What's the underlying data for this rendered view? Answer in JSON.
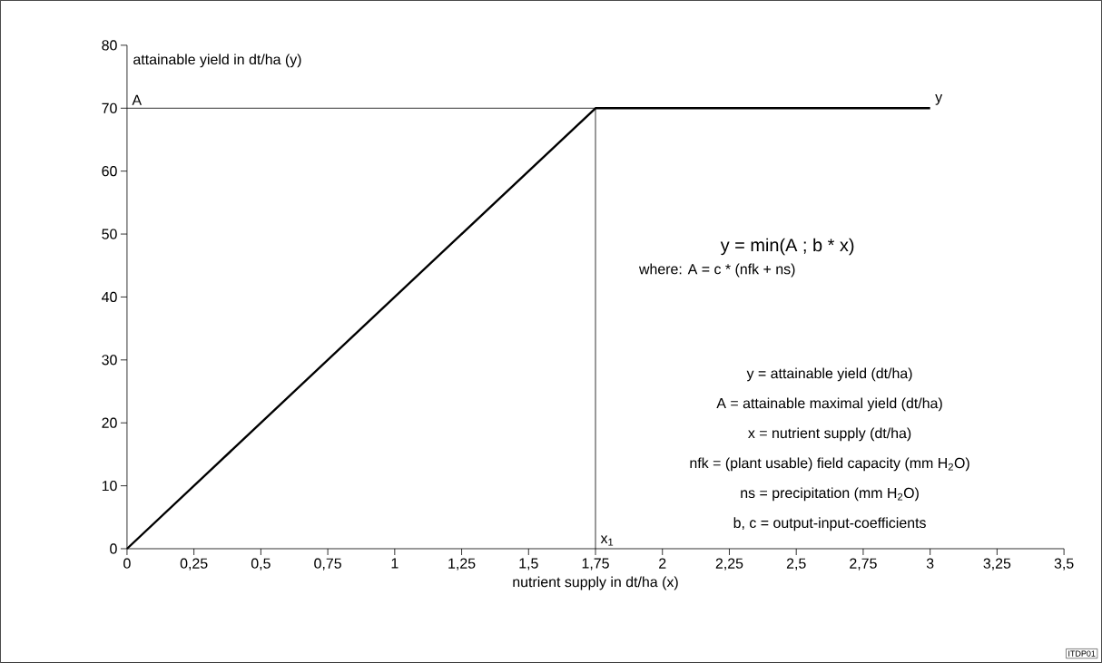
{
  "chart_data": {
    "type": "line",
    "xlabel": "nutrient supply in dt/ha (x)",
    "ylabel": "attainable yield in dt/ha (y)",
    "series": [
      {
        "color": "#000000",
        "x": [
          0,
          1.75,
          3
        ],
        "values": [
          0,
          70,
          70
        ]
      },
      {
        "color": "#000000",
        "x": [
          0,
          1.75,
          1.75
        ],
        "values": [
          70,
          70,
          0
        ]
      }
    ],
    "xlim": [
      0,
      3.5
    ],
    "ylim": [
      0,
      80
    ],
    "xticks": [
      0,
      {
        "value": 0.25,
        "label": "0,25"
      },
      {
        "value": 0.5,
        "label": "0,5"
      },
      {
        "value": 0.75,
        "label": "0,75"
      },
      1,
      {
        "value": 1.25,
        "label": "1,25"
      },
      {
        "value": 1.5,
        "label": "1,5"
      },
      {
        "value": 1.75,
        "label": "1,75"
      },
      2,
      {
        "value": 2.25,
        "label": "2,25"
      },
      {
        "value": 2.5,
        "label": "2,5"
      },
      {
        "value": 2.75,
        "label": "2,75"
      },
      3,
      {
        "value": 3.25,
        "label": "3,25"
      },
      {
        "value": 3.5,
        "label": "3,5"
      }
    ],
    "yticks": [
      0,
      10,
      20,
      30,
      40,
      50,
      60,
      70,
      80
    ],
    "annotations": [
      {
        "text": "A",
        "x": 0,
        "y": 70
      },
      {
        "text": "x$_{1}$",
        "x": 1.75,
        "y": 0
      },
      {
        "text": "y",
        "x": 3,
        "y": 70
      },
      "y = min(A ; b * x)",
      "where: A = c * (nfk + ns)",
      "y = attainable yield (dt/ha)",
      "A = attainable maximal yield (dt/ha)",
      "x = nutrient supply (dt/ha)",
      "nfk = (plant usable) field capacity (mm H$_{2}$O)",
      "ns = precipitation (mm H$_{2}$O)",
      "b, c = output-input-coefficients",
      "ITDP01"
    ]
  }
}
